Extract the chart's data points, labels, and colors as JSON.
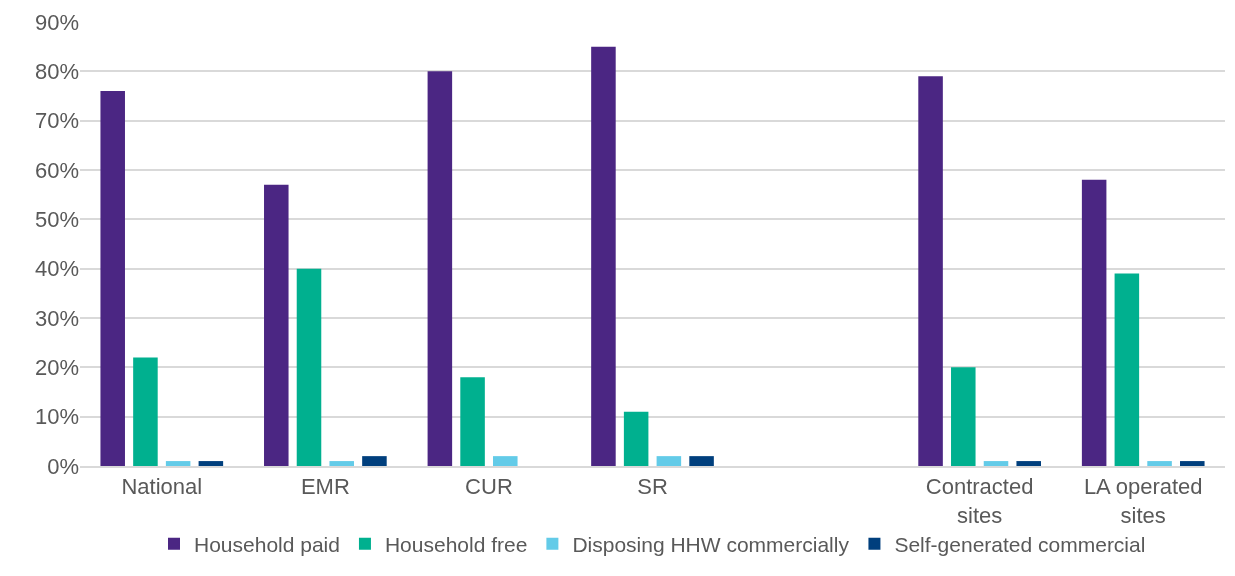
{
  "chart_data": {
    "type": "bar",
    "categories": [
      "National",
      "EMR",
      "CUR",
      "SR",
      null,
      "Contracted sites",
      "LA operated sites"
    ],
    "series": [
      {
        "name": "Household paid",
        "color": "#4b2683",
        "values": [
          76,
          57,
          80,
          85,
          null,
          79,
          58
        ]
      },
      {
        "name": "Household free",
        "color": "#00b08f",
        "values": [
          22,
          40,
          18,
          11,
          null,
          20,
          39
        ]
      },
      {
        "name": "Disposing HHW commercially",
        "color": "#63cbe8",
        "values": [
          1,
          1,
          2,
          2,
          null,
          1,
          1
        ]
      },
      {
        "name": "Self-generated commercial",
        "color": "#003f7d",
        "values": [
          1,
          2,
          0,
          2,
          null,
          1,
          1
        ]
      }
    ],
    "ylim": [
      0,
      90
    ],
    "yticks": [
      {
        "value": 0,
        "label": "0%"
      },
      {
        "value": 10,
        "label": "10%"
      },
      {
        "value": 20,
        "label": "20%"
      },
      {
        "value": 30,
        "label": "30%"
      },
      {
        "value": 40,
        "label": "40%"
      },
      {
        "value": 50,
        "label": "50%"
      },
      {
        "value": 60,
        "label": "60%"
      },
      {
        "value": 70,
        "label": "70%"
      },
      {
        "value": 80,
        "label": "80%"
      },
      {
        "value": 90,
        "label": "90%"
      }
    ],
    "grid": "y",
    "legend": "bottom"
  }
}
